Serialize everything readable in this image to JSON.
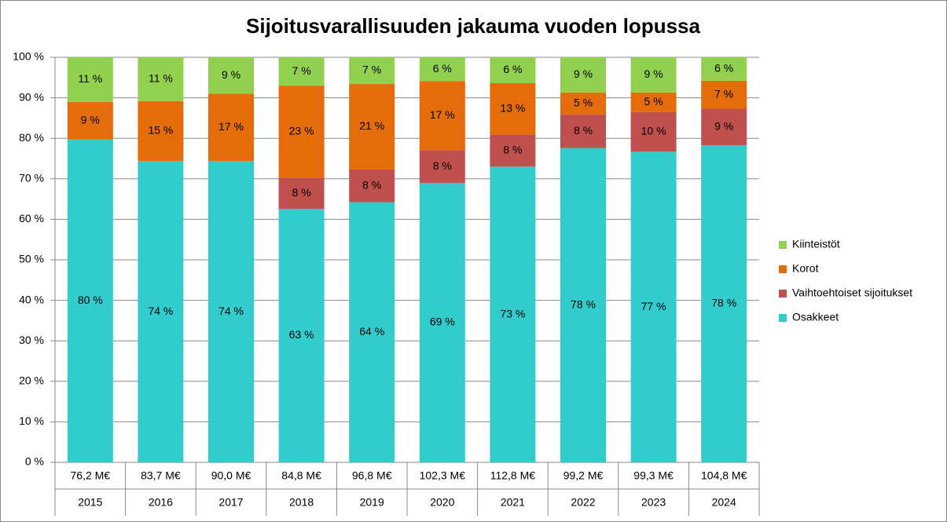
{
  "chart_data": {
    "type": "stacked_bar_100",
    "title": "Sijoitusvarallisuuden jakauma vuoden lopussa",
    "categories": [
      "2015",
      "2016",
      "2017",
      "2018",
      "2019",
      "2020",
      "2021",
      "2022",
      "2023",
      "2024"
    ],
    "totals": [
      "76,2 M€",
      "83,7 M€",
      "90,0 M€",
      "84,8 M€",
      "96,8 M€",
      "102,3 M€",
      "112,8 M€",
      "99,2 M€",
      "99,3 M€",
      "104,8 M€"
    ],
    "series": [
      {
        "name": "Osakkeet",
        "color": "#33cccc",
        "values": [
          79.7,
          74.4,
          74.4,
          62.6,
          64.2,
          69.0,
          73.0,
          77.6,
          76.7,
          78.3
        ],
        "value_labels": [
          "80 %",
          "74 %",
          "74 %",
          "63 %",
          "64 %",
          "69 %",
          "73 %",
          "78 %",
          "77 %",
          "78 %"
        ]
      },
      {
        "name": "Vaihtoehtoiset sijoitukset",
        "color": "#c0504d",
        "values": [
          null,
          null,
          null,
          7.7,
          8.1,
          8.1,
          7.9,
          8.3,
          9.8,
          9.0
        ],
        "value_labels": [
          null,
          null,
          null,
          "8 %",
          "8 %",
          "8 %",
          "8 %",
          "8 %",
          "10 %",
          "9 %"
        ]
      },
      {
        "name": "Korot",
        "color": "#e46c0a",
        "values": [
          9.3,
          14.8,
          16.6,
          22.7,
          21.1,
          17.0,
          12.7,
          5.4,
          4.8,
          6.9
        ],
        "value_labels": [
          "9 %",
          "15 %",
          "17 %",
          "23 %",
          "21 %",
          "17 %",
          "13 %",
          "5 %",
          "5 %",
          "7 %"
        ]
      },
      {
        "name": "Kiinteistöt",
        "color": "#92d050",
        "values": [
          11.0,
          10.8,
          9.0,
          7.0,
          6.6,
          5.9,
          6.4,
          8.7,
          8.7,
          5.8
        ],
        "value_labels": [
          "11 %",
          "11 %",
          "9 %",
          "7 %",
          "7 %",
          "6 %",
          "6 %",
          "9 %",
          "9 %",
          "6 %"
        ]
      }
    ],
    "ylim": [
      0,
      100
    ],
    "yticks": [
      {
        "value": 0,
        "label": "0 %"
      },
      {
        "value": 10,
        "label": "10 %"
      },
      {
        "value": 20,
        "label": "20 %"
      },
      {
        "value": 30,
        "label": "30 %"
      },
      {
        "value": 40,
        "label": "40 %"
      },
      {
        "value": 50,
        "label": "50 %"
      },
      {
        "value": 60,
        "label": "60 %"
      },
      {
        "value": 70,
        "label": "70 %"
      },
      {
        "value": 80,
        "label": "80 %"
      },
      {
        "value": 90,
        "label": "90 %"
      },
      {
        "value": 100,
        "label": "100 %"
      }
    ],
    "grid": true,
    "legend": "right"
  }
}
